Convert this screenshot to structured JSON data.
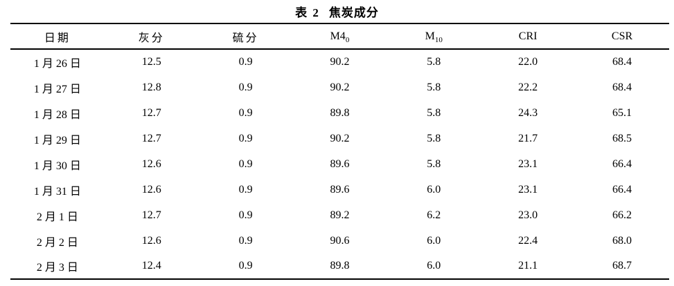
{
  "title": {
    "prefix": "表 2",
    "text": "焦炭成分"
  },
  "table": {
    "columns": [
      {
        "label": "日期"
      },
      {
        "label": "灰分"
      },
      {
        "label": "硫分"
      },
      {
        "base": "M4",
        "sub": "0"
      },
      {
        "base": "M",
        "sub": "10"
      },
      {
        "label": "CRI"
      },
      {
        "label": "CSR"
      }
    ],
    "rows": [
      [
        "1 月 26 日",
        "12.5",
        "0.9",
        "90.2",
        "5.8",
        "22.0",
        "68.4"
      ],
      [
        "1 月 27 日",
        "12.8",
        "0.9",
        "90.2",
        "5.8",
        "22.2",
        "68.4"
      ],
      [
        "1 月 28 日",
        "12.7",
        "0.9",
        "89.8",
        "5.8",
        "24.3",
        "65.1"
      ],
      [
        "1 月 29 日",
        "12.7",
        "0.9",
        "90.2",
        "5.8",
        "21.7",
        "68.5"
      ],
      [
        "1 月 30 日",
        "12.6",
        "0.9",
        "89.6",
        "5.8",
        "23.1",
        "66.4"
      ],
      [
        "1 月 31 日",
        "12.6",
        "0.9",
        "89.6",
        "6.0",
        "23.1",
        "66.4"
      ],
      [
        "2 月 1 日",
        "12.7",
        "0.9",
        "89.2",
        "6.2",
        "23.0",
        "66.2"
      ],
      [
        "2 月 2 日",
        "12.6",
        "0.9",
        "90.6",
        "6.0",
        "22.4",
        "68.0"
      ],
      [
        "2 月 3 日",
        "12.4",
        "0.9",
        "89.8",
        "6.0",
        "21.1",
        "68.7"
      ]
    ]
  },
  "colors": {
    "text": "#000000",
    "rule": "#000000",
    "background": "#ffffff"
  }
}
